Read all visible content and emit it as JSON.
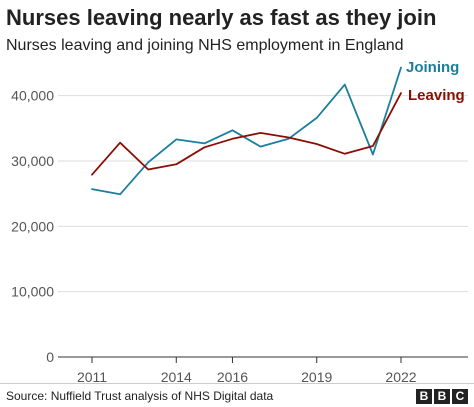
{
  "title": "Nurses leaving nearly as fast as they join",
  "subtitle": "Nurses leaving and joining NHS employment in England",
  "source": "Source: Nuffield Trust analysis of NHS Digital data",
  "logo": {
    "letters": [
      "B",
      "B",
      "C"
    ]
  },
  "chart_data": {
    "type": "line",
    "title": "Nurses leaving nearly as fast as they join",
    "subtitle": "Nurses leaving and joining NHS employment in England",
    "x": [
      2011,
      2012,
      2013,
      2014,
      2015,
      2016,
      2017,
      2018,
      2019,
      2020,
      2021,
      2022
    ],
    "x_ticks": [
      2011,
      2014,
      2016,
      2019,
      2022
    ],
    "x_tick_labels": [
      "2011",
      "2014",
      "2016",
      "2019",
      "2022"
    ],
    "xlim": [
      2011,
      2022
    ],
    "ylim": [
      0,
      45000
    ],
    "y_ticks": [
      0,
      10000,
      20000,
      30000,
      40000
    ],
    "y_tick_labels": [
      "0",
      "10,000",
      "20,000",
      "30,000",
      "40,000"
    ],
    "grid": "horizontal",
    "legend": "direct labels at line ends",
    "series": [
      {
        "name": "Joining",
        "color": "#1a7f9c",
        "values": [
          25700,
          24900,
          29800,
          33300,
          32700,
          34700,
          32200,
          33400,
          36600,
          41700,
          31000,
          44300
        ]
      },
      {
        "name": "Leaving",
        "color": "#8b0e04",
        "values": [
          27900,
          32800,
          28700,
          29500,
          32100,
          33400,
          34300,
          33600,
          32600,
          31100,
          32300,
          40400
        ]
      }
    ]
  }
}
